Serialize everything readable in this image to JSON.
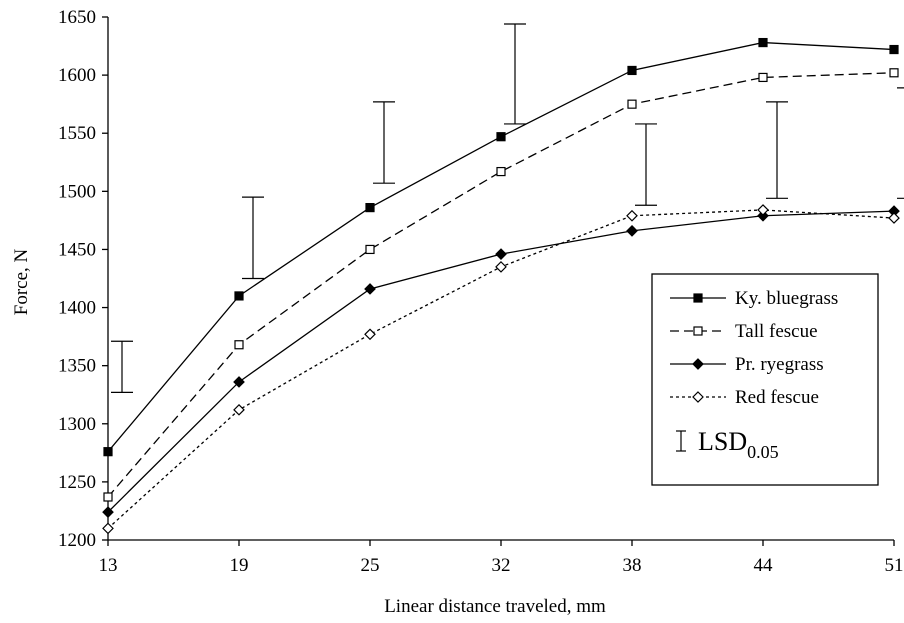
{
  "chart_data": {
    "type": "line",
    "xlabel": "Linear distance traveled, mm",
    "ylabel": "Force, N",
    "x": [
      13,
      19,
      25,
      32,
      38,
      44,
      51
    ],
    "x_tick_labels": [
      "13",
      "19",
      "25",
      "32",
      "38",
      "44",
      "51"
    ],
    "ylim": [
      1200,
      1650
    ],
    "y_ticks": [
      1200,
      1250,
      1300,
      1350,
      1400,
      1450,
      1500,
      1550,
      1600,
      1650
    ],
    "y_tick_labels": [
      "1200",
      "1250",
      "1300",
      "1350",
      "1400",
      "1450",
      "1500",
      "1550",
      "1600",
      "1650"
    ],
    "grid": false,
    "legend_position": "right",
    "series": [
      {
        "name": "Ky. bluegrass",
        "marker": "filled-square",
        "line": "solid",
        "color": "#000000",
        "values": [
          1276,
          1410,
          1486,
          1547,
          1604,
          1628,
          1622
        ]
      },
      {
        "name": "Tall fescue",
        "marker": "open-square",
        "line": "dashed",
        "color": "#000000",
        "values": [
          1237,
          1368,
          1450,
          1517,
          1575,
          1598,
          1602
        ]
      },
      {
        "name": "Pr. ryegrass",
        "marker": "filled-diamond",
        "line": "solid",
        "color": "#000000",
        "values": [
          1224,
          1336,
          1416,
          1446,
          1466,
          1479,
          1483
        ]
      },
      {
        "name": "Red fescue",
        "marker": "open-diamond",
        "line": "dotted",
        "color": "#000000",
        "values": [
          1210,
          1312,
          1377,
          1435,
          1479,
          1484,
          1477
        ]
      }
    ],
    "error_bars": {
      "name_main": "LSD",
      "name_sub": "0.05",
      "bars": [
        {
          "x": 13,
          "low": 1327,
          "high": 1371
        },
        {
          "x": 19,
          "low": 1425,
          "high": 1495
        },
        {
          "x": 25,
          "low": 1507,
          "high": 1577
        },
        {
          "x": 32,
          "low": 1558,
          "high": 1644
        },
        {
          "x": 38,
          "low": 1488,
          "high": 1558
        },
        {
          "x": 44,
          "low": 1494,
          "high": 1577
        },
        {
          "x": 51,
          "low": 1494,
          "high": 1589
        }
      ]
    }
  }
}
